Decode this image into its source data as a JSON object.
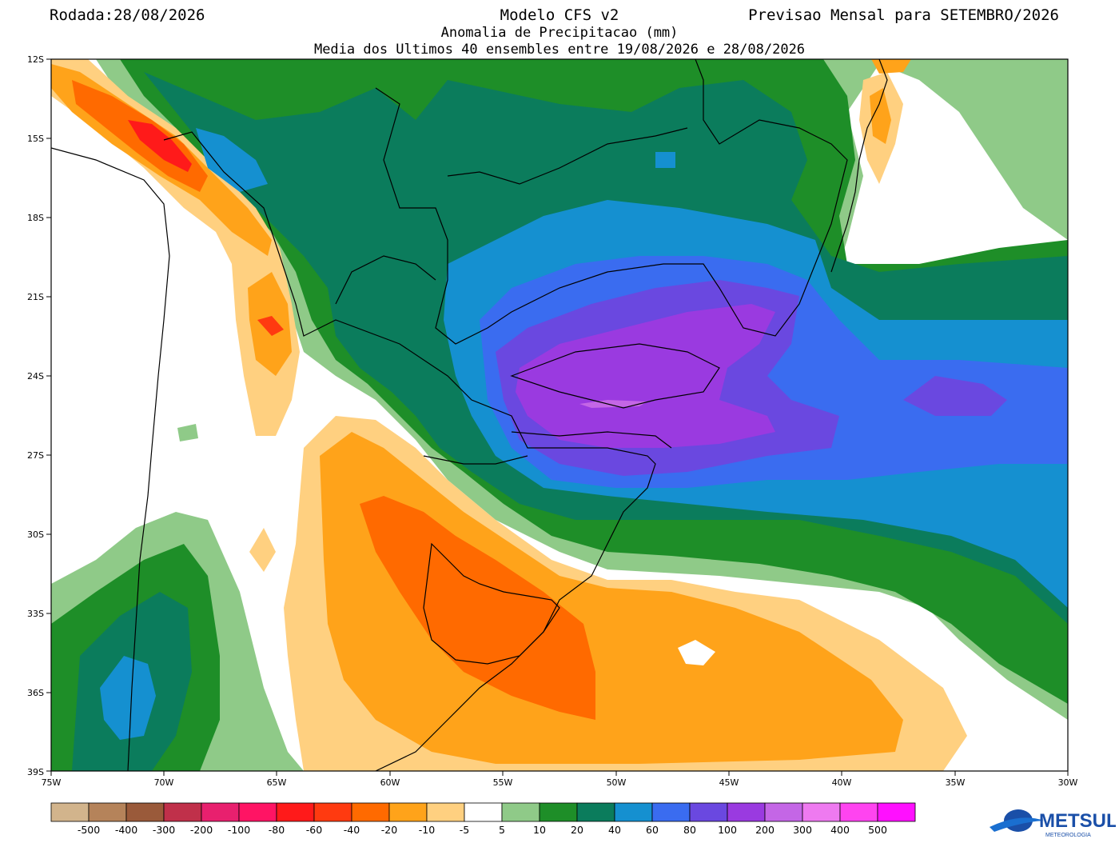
{
  "header": {
    "left": "Rodada:28/08/2026",
    "center_line1": "Modelo CFS v2",
    "center_line2": "Anomalia de Precipitacao (mm)",
    "center_line3": "Media dos Ultimos 40 ensembles entre 19/08/2026 e 28/08/2026",
    "right": "Previsao Mensal para SETEMBRO/2026"
  },
  "map": {
    "lat_labels": [
      "12S",
      "15S",
      "18S",
      "21S",
      "24S",
      "27S",
      "30S",
      "33S",
      "36S",
      "39S"
    ],
    "lon_labels": [
      "75W",
      "70W",
      "65W",
      "60W",
      "55W",
      "50W",
      "45W",
      "40W",
      "35W",
      "30W"
    ]
  },
  "colorbar": {
    "labels": [
      "-500",
      "-400",
      "-300",
      "-200",
      "-100",
      "-80",
      "-60",
      "-40",
      "-20",
      "-10",
      "-5",
      "5",
      "10",
      "20",
      "40",
      "60",
      "80",
      "100",
      "200",
      "300",
      "400",
      "500"
    ],
    "colors": [
      "#d2b48c",
      "#b5835a",
      "#9a5a3a",
      "#c0304a",
      "#e8206e",
      "#ff1464",
      "#ff1a1a",
      "#ff3a10",
      "#ff6a00",
      "#ffa31a",
      "#ffd080",
      "#ffffff",
      "#8fca88",
      "#1e8e28",
      "#0b7c5c",
      "#1590d0",
      "#3a6cf0",
      "#6a48e0",
      "#9a3ae0",
      "#c466e6",
      "#ee7af0",
      "#ff44f0",
      "#ff10ff"
    ]
  },
  "logo": {
    "name": "METSUL",
    "tagline": "METEOROLOGIA"
  }
}
